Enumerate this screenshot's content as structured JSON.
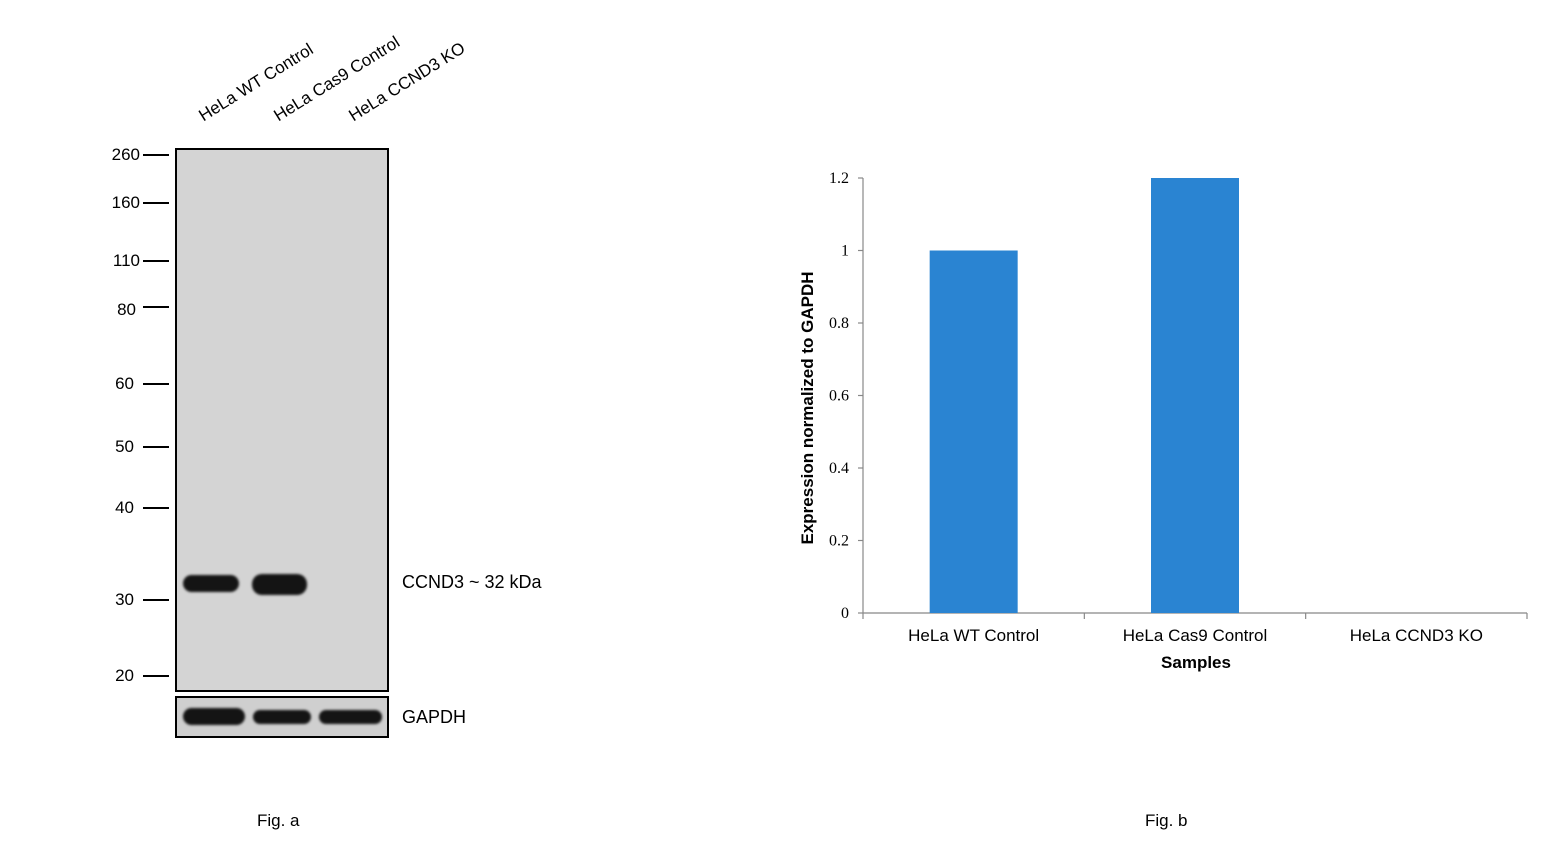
{
  "figure_a": {
    "caption": "Fig. a",
    "lanes": [
      "HeLa WT Control",
      "HeLa Cas9 Control",
      "HeLa CCND3 KO"
    ],
    "mw_markers": [
      "260",
      "160",
      "110",
      "80",
      "60",
      "50",
      "40",
      "30",
      "20"
    ],
    "band_label": "CCND3 ~ 32 kDa",
    "loading_control_label": "GAPDH"
  },
  "figure_b": {
    "caption": "Fig. b"
  },
  "chart_data": {
    "type": "bar",
    "categories": [
      "HeLa WT Control",
      "HeLa Cas9 Control",
      "HeLa CCND3 KO"
    ],
    "values": [
      1.0,
      1.2,
      0.0
    ],
    "xlabel": "Samples",
    "ylabel": "Expression  normalized to GAPDH",
    "ylim": [
      0,
      1.2
    ],
    "yticks": [
      "0",
      "0.2",
      "0.4",
      "0.6",
      "0.8",
      "1",
      "1.2"
    ],
    "bar_color": "#2a84d2",
    "grid": false
  }
}
